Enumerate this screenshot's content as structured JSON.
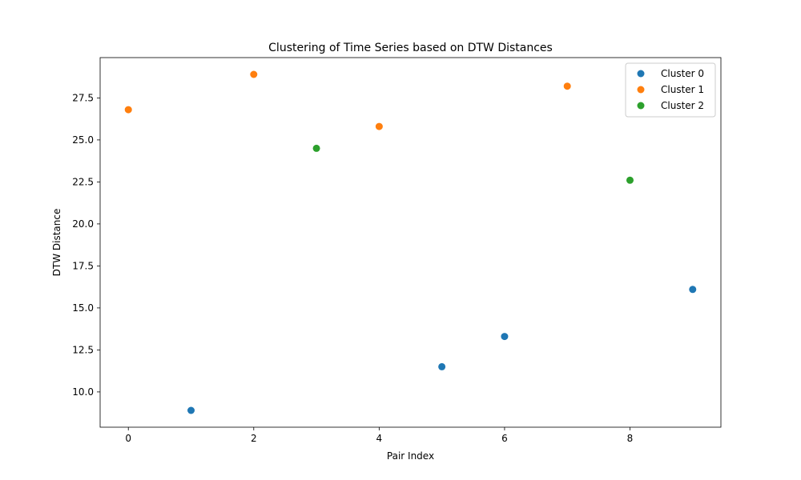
{
  "chart_data": {
    "type": "scatter",
    "title": "Clustering of Time Series based on DTW Distances",
    "xlabel": "Pair Index",
    "ylabel": "DTW Distance",
    "xlim": [
      -0.45,
      9.45
    ],
    "ylim": [
      7.9,
      29.9
    ],
    "xticks": [
      0,
      2,
      4,
      6,
      8
    ],
    "yticks": [
      10.0,
      12.5,
      15.0,
      17.5,
      20.0,
      22.5,
      25.0,
      27.5
    ],
    "grid": false,
    "legend_position": "top-right",
    "series": [
      {
        "name": "Cluster 0",
        "color": "#1f77b4",
        "points": [
          {
            "x": 1,
            "y": 8.9
          },
          {
            "x": 5,
            "y": 11.5
          },
          {
            "x": 6,
            "y": 13.3
          },
          {
            "x": 9,
            "y": 16.1
          }
        ]
      },
      {
        "name": "Cluster 1",
        "color": "#ff7f0e",
        "points": [
          {
            "x": 0,
            "y": 26.8
          },
          {
            "x": 2,
            "y": 28.9
          },
          {
            "x": 4,
            "y": 25.8
          },
          {
            "x": 7,
            "y": 28.2
          }
        ]
      },
      {
        "name": "Cluster 2",
        "color": "#2ca02c",
        "points": [
          {
            "x": 3,
            "y": 24.5
          },
          {
            "x": 8,
            "y": 22.6
          }
        ]
      }
    ]
  }
}
